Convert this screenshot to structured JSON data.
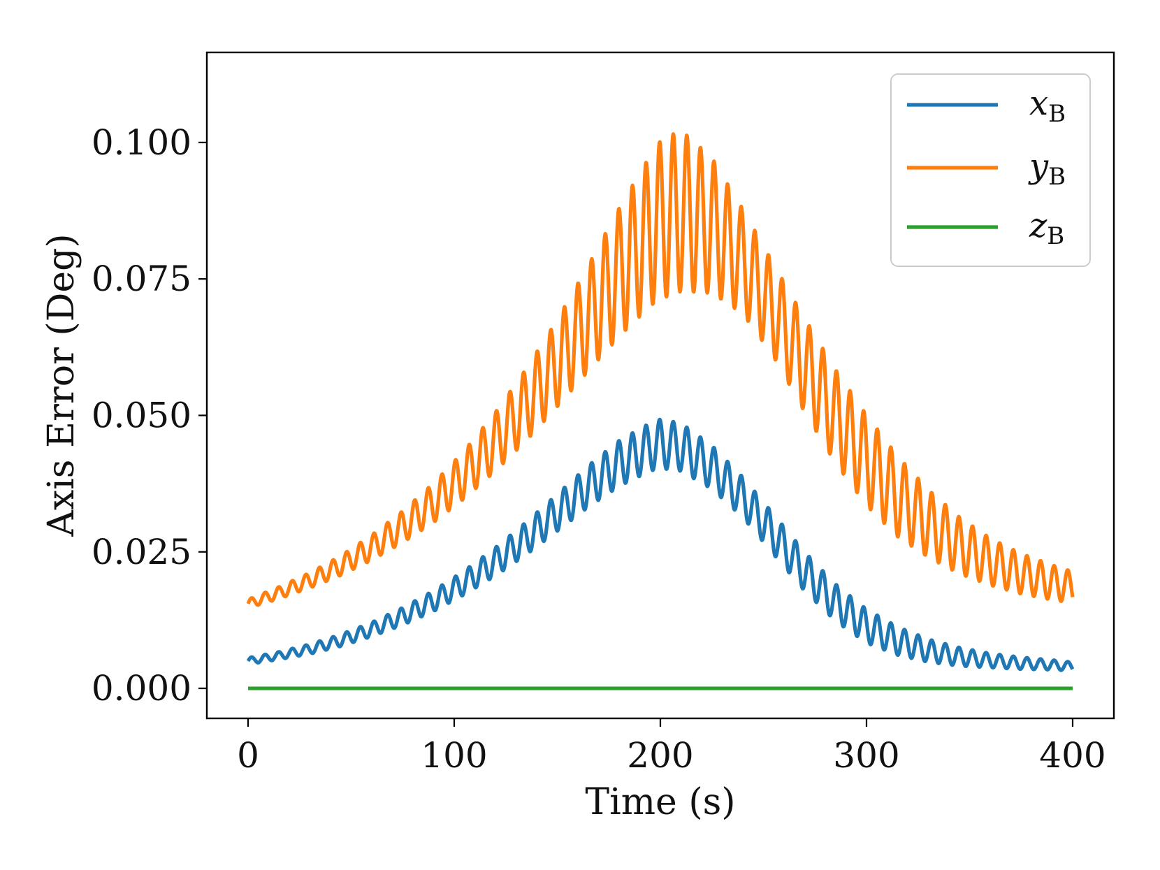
{
  "chart_data": {
    "type": "line",
    "title": "",
    "xlabel": "Time (s)",
    "ylabel": "Axis Error (Deg)",
    "xlim": [
      -20,
      420
    ],
    "ylim": [
      -0.0055,
      0.1165
    ],
    "xticks": [
      0,
      100,
      200,
      300,
      400
    ],
    "xtick_labels": [
      "0",
      "100",
      "200",
      "300",
      "400"
    ],
    "yticks": [
      0.0,
      0.025,
      0.05,
      0.075,
      0.1
    ],
    "ytick_labels": [
      "0.000",
      "0.025",
      "0.050",
      "0.075",
      "0.100"
    ],
    "grid": false,
    "legend_position": "top-right",
    "x": [
      0,
      15,
      30,
      45,
      60,
      75,
      90,
      105,
      120,
      135,
      150,
      165,
      180,
      195,
      200,
      210,
      225,
      240,
      255,
      270,
      285,
      300,
      315,
      330,
      345,
      360,
      375,
      390,
      400
    ],
    "series": [
      {
        "name": "x",
        "subscript": "B",
        "color": "#1f77b4",
        "values": [
          0.005,
          0.006,
          0.0072,
          0.0088,
          0.0108,
          0.0132,
          0.016,
          0.0194,
          0.0232,
          0.0275,
          0.0322,
          0.037,
          0.0412,
          0.0442,
          0.0448,
          0.0442,
          0.0405,
          0.035,
          0.0282,
          0.0214,
          0.0157,
          0.0114,
          0.0087,
          0.0069,
          0.0058,
          0.0051,
          0.0046,
          0.0043,
          0.004
        ],
        "oscillation": {
          "period": 6.6,
          "amplitude": [
            0.0006,
            0.0007,
            0.0009,
            0.0011,
            0.0013,
            0.0016,
            0.0019,
            0.0022,
            0.0026,
            0.003,
            0.0034,
            0.0038,
            0.0042,
            0.0044,
            0.0045,
            0.0044,
            0.004,
            0.0037,
            0.0037,
            0.0036,
            0.0034,
            0.0031,
            0.0026,
            0.0021,
            0.0017,
            0.0013,
            0.0011,
            0.0009,
            0.0008
          ]
        }
      },
      {
        "name": "y",
        "subscript": "B",
        "color": "#ff7f0e",
        "values": [
          0.0155,
          0.0175,
          0.0198,
          0.0225,
          0.0258,
          0.0296,
          0.034,
          0.0392,
          0.0452,
          0.052,
          0.0596,
          0.0678,
          0.0762,
          0.0838,
          0.0858,
          0.0875,
          0.0848,
          0.0782,
          0.0692,
          0.0592,
          0.0498,
          0.0418,
          0.0352,
          0.0302,
          0.0262,
          0.0232,
          0.021,
          0.0194,
          0.0185
        ],
        "oscillation": {
          "period": 6.6,
          "amplitude": [
            0.0008,
            0.0011,
            0.0014,
            0.0018,
            0.0023,
            0.0029,
            0.0036,
            0.0044,
            0.0054,
            0.0066,
            0.008,
            0.0097,
            0.0118,
            0.0138,
            0.0145,
            0.0148,
            0.0124,
            0.0096,
            0.0085,
            0.0086,
            0.0086,
            0.0083,
            0.0074,
            0.0062,
            0.0052,
            0.0043,
            0.0037,
            0.0032,
            0.0029
          ]
        }
      },
      {
        "name": "z",
        "subscript": "B",
        "color": "#2ca02c",
        "values": [
          0,
          0,
          0,
          0,
          0,
          0,
          0,
          0,
          0,
          0,
          0,
          0,
          0,
          0,
          0,
          0,
          0,
          0,
          0,
          0,
          0,
          0,
          0,
          0,
          0,
          0,
          0,
          0,
          0
        ],
        "oscillation": {
          "period": 6.6,
          "amplitude": [
            0,
            0,
            0,
            0,
            0,
            0,
            0,
            0,
            0,
            0,
            0,
            0,
            0,
            0,
            0,
            0,
            0,
            0,
            0,
            0,
            0,
            0,
            0,
            0,
            0,
            0,
            0,
            0,
            0
          ]
        }
      }
    ]
  }
}
